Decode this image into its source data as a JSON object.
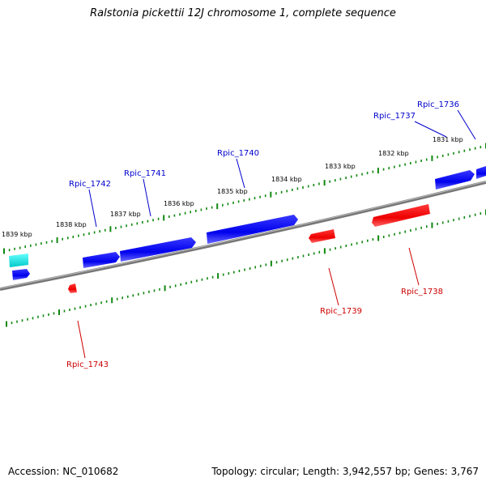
{
  "title": "Ralstonia pickettii 12J chromosome 1, complete sequence",
  "accession_text": "Accession: NC_010682",
  "summary_text": "Topology: circular; Length: 3,942,557 bp; Genes: 3,767",
  "colors": {
    "forward_gene": "#0000ee",
    "reverse_gene": "#ee0000",
    "highlight_gene": "#00dddd",
    "backbone": "#888888",
    "tick": "#118811",
    "forward_label": "#0000cc",
    "reverse_label": "#cc0000"
  },
  "scale_labels": [
    "1831 kbp",
    "1832 kbp",
    "1833 kbp",
    "1834 kbp",
    "1835 kbp",
    "1836 kbp",
    "1837 kbp",
    "1838 kbp",
    "1839 kbp"
  ],
  "gene_labels": {
    "forward": [
      "Rpic_1736",
      "Rpic_1737",
      "Rpic_1740",
      "Rpic_1741",
      "Rpic_1742"
    ],
    "reverse": [
      "Rpic_1738",
      "Rpic_1739",
      "Rpic_1743"
    ]
  }
}
